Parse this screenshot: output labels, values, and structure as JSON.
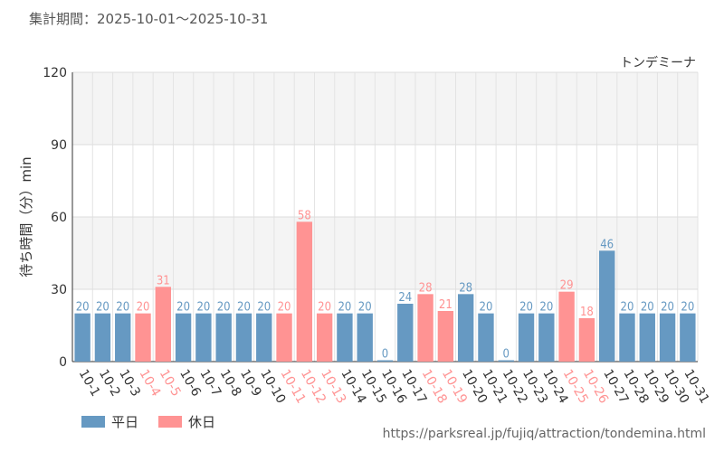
{
  "period_label": "集計期間：2025-10-01～2025-10-31",
  "legend": {
    "weekday_label": "平日",
    "holiday_label": "休日",
    "weekday_color": "#6699c2",
    "holiday_color": "#ff9393"
  },
  "source_url": "https://parksreal.jp/fujiq/attraction/tondemina.html",
  "chart_data": {
    "type": "bar",
    "title": "トンデミーナ",
    "ylabel": "待ち時間（分）min",
    "xlabel": "",
    "ylim": [
      0,
      120
    ],
    "yticks": [
      0,
      30,
      60,
      90,
      120
    ],
    "categories": [
      "10-1",
      "10-2",
      "10-3",
      "10-4",
      "10-5",
      "10-6",
      "10-7",
      "10-8",
      "10-9",
      "10-10",
      "10-11",
      "10-12",
      "10-13",
      "10-14",
      "10-15",
      "10-16",
      "10-17",
      "10-18",
      "10-19",
      "10-20",
      "10-21",
      "10-22",
      "10-23",
      "10-24",
      "10-25",
      "10-26",
      "10-27",
      "10-28",
      "10-29",
      "10-30",
      "10-31"
    ],
    "values": [
      20,
      20,
      20,
      20,
      31,
      20,
      20,
      20,
      20,
      20,
      20,
      58,
      20,
      20,
      20,
      0,
      24,
      28,
      21,
      28,
      20,
      0,
      20,
      20,
      29,
      18,
      46,
      20,
      20,
      20,
      20
    ],
    "day_types": [
      "weekday",
      "weekday",
      "weekday",
      "holiday",
      "holiday",
      "weekday",
      "weekday",
      "weekday",
      "weekday",
      "weekday",
      "holiday",
      "holiday",
      "holiday",
      "weekday",
      "weekday",
      "weekday",
      "weekday",
      "holiday",
      "holiday",
      "weekday",
      "weekday",
      "weekday",
      "weekday",
      "weekday",
      "holiday",
      "holiday",
      "weekday",
      "weekday",
      "weekday",
      "weekday",
      "weekday"
    ]
  }
}
